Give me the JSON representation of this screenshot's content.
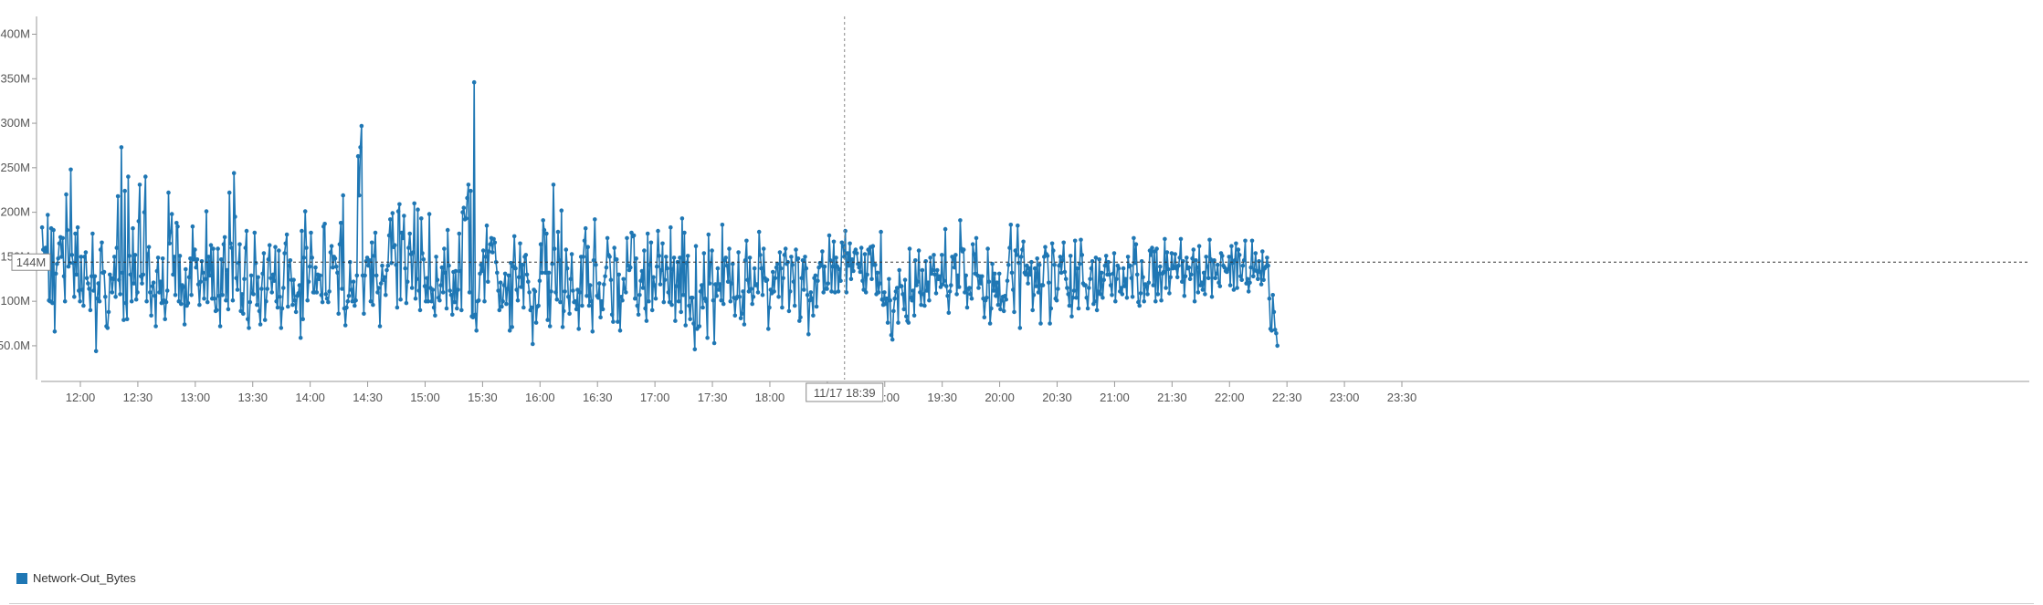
{
  "colors": {
    "series": "#1f77b4",
    "axis": "#999999",
    "crosshair": "#888888",
    "badge_border": "#888888",
    "text": "#555555"
  },
  "crosshair": {
    "x_label": "11/17 18:39",
    "x_minutes": 1119,
    "y_label": "144M",
    "y_value": 144
  },
  "chart_data": {
    "type": "line",
    "title": "",
    "xlabel": "",
    "ylabel": "",
    "xlim_minutes": [
      695,
      1405
    ],
    "ylim": [
      12,
      420
    ],
    "x_ticks": [
      {
        "label": "12:00",
        "minutes": 720
      },
      {
        "label": "12:30",
        "minutes": 750
      },
      {
        "label": "13:00",
        "minutes": 780
      },
      {
        "label": "13:30",
        "minutes": 810
      },
      {
        "label": "14:00",
        "minutes": 840
      },
      {
        "label": "14:30",
        "minutes": 870
      },
      {
        "label": "15:00",
        "minutes": 900
      },
      {
        "label": "15:30",
        "minutes": 930
      },
      {
        "label": "16:00",
        "minutes": 960
      },
      {
        "label": "16:30",
        "minutes": 990
      },
      {
        "label": "17:00",
        "minutes": 1020
      },
      {
        "label": "17:30",
        "minutes": 1050
      },
      {
        "label": "18:00",
        "minutes": 1080
      },
      {
        "label": "18:30",
        "minutes": 1110
      },
      {
        "label": "19:00",
        "minutes": 1140
      },
      {
        "label": "19:30",
        "minutes": 1170
      },
      {
        "label": "20:00",
        "minutes": 1200
      },
      {
        "label": "20:30",
        "minutes": 1230
      },
      {
        "label": "21:00",
        "minutes": 1260
      },
      {
        "label": "21:30",
        "minutes": 1290
      },
      {
        "label": "22:00",
        "minutes": 1320
      },
      {
        "label": "22:30",
        "minutes": 1350
      },
      {
        "label": "23:00",
        "minutes": 1380
      },
      {
        "label": "23:30",
        "minutes": 1410
      }
    ],
    "y_ticks": [
      {
        "label": "50.0M",
        "value": 50
      },
      {
        "label": "100M",
        "value": 100
      },
      {
        "label": "150M",
        "value": 150
      },
      {
        "label": "200M",
        "value": 200
      },
      {
        "label": "250M",
        "value": 250
      },
      {
        "label": "300M",
        "value": 300
      },
      {
        "label": "350M",
        "value": 350
      },
      {
        "label": "400M",
        "value": 400
      }
    ],
    "series": [
      {
        "name": "Network-Out_Bytes",
        "x_start_minutes": 700,
        "x_step_minutes": 0.6,
        "values": [
          183,
          158,
          152,
          160,
          145,
          197,
          101,
          100,
          182,
          98,
          180,
          66,
          131,
          142,
          148,
          165,
          172,
          150,
          171,
          128,
          100,
          220,
          180,
          139,
          143,
          248,
          152,
          143,
          105,
          176,
          130,
          183,
          112,
          100,
          150,
          113,
          95,
          150,
          155,
          126,
          120,
          114,
          90,
          128,
          176,
          112,
          128,
          44,
          103,
          120,
          100,
          158,
          166,
          132,
          133,
          105,
          72,
          70,
          88,
          130,
          126,
          110,
          125,
          150,
          105,
          160,
          218,
          124,
          108,
          273,
          132,
          79,
          224,
          98,
          80,
          240,
          151,
          130,
          100,
          182,
          120,
          152,
          102,
          110,
          190,
          231,
          128,
          120,
          130,
          200,
          240,
          100,
          153,
          161,
          110,
          84,
          117,
          121,
          106,
          72,
          134,
          149,
          110,
          122,
          98,
          148,
          101,
          80,
          99,
          112,
          222,
          165,
          178,
          198,
          130,
          150,
          107,
          188,
          184,
          100,
          151,
          97,
          118,
          116,
          74,
          136,
          95,
          98,
          127,
          148,
          107,
          184,
          147,
          158,
          138,
          147,
          119,
          96,
          122,
          145,
          132,
          103,
          125,
          201,
          99,
          150,
          129,
          163,
          103,
          159,
          103,
          89,
          90,
          159,
          106,
          72,
          147,
          107,
          164,
          172,
          101,
          135,
          91,
          222,
          165,
          160,
          101,
          244,
          195,
          126,
          113,
          143,
          164,
          89,
          108,
          86,
          125,
          160,
          179,
          80,
          70,
          99,
          129,
          109,
          108,
          177,
          143,
          96,
          127,
          89,
          74,
          114,
          131,
          154,
          79,
          100,
          114,
          147,
          163,
          126,
          110,
          130,
          123,
          161,
          100,
          93,
          157,
          105,
          70,
          92,
          115,
          154,
          165,
          175,
          94,
          140,
          146,
          124,
          96,
          124,
          101,
          88,
          106,
          109,
          118,
          59,
          179,
          80,
          149,
          201,
          160,
          101,
          122,
          139,
          177,
          149,
          110,
          110,
          138,
          110,
          130,
          125,
          129,
          107,
          99,
          184,
          187,
          108,
          103,
          99,
          111,
          155,
          162,
          138,
          150,
          148,
          139,
          132,
          86,
          164,
          188,
          114,
          219,
          92,
          73,
          93,
          100,
          106,
          144,
          113,
          100,
          122,
          95,
          101,
          129,
          263,
          219,
          273,
          297,
          129,
          86,
          129,
          145,
          149,
          140,
          146,
          100,
          166,
          96,
          151,
          177,
          129,
          110,
          115,
          72,
          120,
          140,
          124,
          127,
          107,
          135,
          140,
          174,
          192,
          143,
          199,
          161,
          163,
          141,
          93,
          201,
          209,
          102,
          177,
          171,
          196,
          137,
          98,
          122,
          160,
          176,
          153,
          115,
          155,
          210,
          103,
          125,
          203,
          112,
          90,
          193,
          154,
          147,
          117,
          100,
          126,
          100,
          198,
          115,
          100,
          113,
          93,
          84,
          150,
          124,
          104,
          101,
          118,
          138,
          110,
          159,
          132,
          92,
          180,
          140,
          112,
          107,
          85,
          133,
          99,
          134,
          92,
          113,
          176,
          134,
          90,
          200,
          205,
          192,
          193,
          216,
          231,
          110,
          224,
          83,
          82,
          346,
          85,
          67,
          100,
          101,
          131,
          141,
          134,
          157,
          100,
          150,
          185,
          122,
          156,
          164,
          171,
          155,
          170,
          166,
          144,
          132,
          112,
          90,
          121,
          94,
          100,
          118,
          131,
          97,
          114,
          129,
          67,
          143,
          71,
          139,
          173,
          137,
          113,
          101,
          127,
          165,
          116,
          141,
          93,
          150,
          152,
          130,
          122,
          110,
          90,
          93,
          52,
          113,
          111,
          76,
          94,
          95,
          123,
          164,
          132,
          191,
          180,
          132,
          176,
          79,
          132,
          72,
          111,
          142,
          231,
          159,
          110,
          102,
          178,
          146,
          99,
          202,
          71,
          89,
          111,
          158,
          137,
          105,
          86,
          125,
          153,
          112,
          99,
          100,
          91,
          113,
          69,
          110,
          150,
          95,
          150,
          168,
          182,
          106,
          161,
          95,
          118,
          100,
          66,
          146,
          192,
          141,
          106,
          104,
          120,
          82,
          100,
          91,
          119,
          128,
          138,
          171,
          152,
          150,
          124,
          85,
          77,
          160,
          147,
          147,
          77,
          130,
          67,
          105,
          101,
          125,
          114,
          110,
          171,
          140,
          135,
          138,
          177,
          173,
          174,
          103,
          148,
          95,
          85,
          107,
          123,
          134,
          115,
          157,
          92,
          78,
          176,
          100,
          141,
          166,
          90,
          127,
          118,
          103,
          139,
          179,
          151,
          119,
          135,
          165,
          99,
          124,
          150,
          137,
          110,
          99,
          183,
          96,
          136,
          149,
          78,
          117,
          144,
          100,
          149,
          88,
          193,
          107,
          177,
          73,
          143,
          151,
          95,
          80,
          104,
          104,
          75,
          46,
          162,
          69,
          71,
          72,
          111,
          118,
          93,
          154,
          103,
          100,
          59,
          175,
          120,
          143,
          157,
          101,
          53,
          119,
          106,
          137,
          113,
          119,
          101,
          186,
          97,
          146,
          149,
          140,
          122,
          159,
          100,
          120,
          142,
          104,
          84,
          103,
          105,
          155,
          105,
          81,
          86,
          111,
          74,
          146,
          168,
          124,
          111,
          149,
          114,
          97,
          105,
          137,
          118,
          119,
          110,
          178,
          152,
          137,
          107,
          159,
          126,
          123,
          124,
          69,
          93,
          113,
          109,
          133,
          111,
          126,
          138,
          142,
          105,
          155,
          137,
          93,
          126,
          152,
          159,
          142,
          144,
          89,
          111,
          150,
          141,
          122,
          95,
          158,
          147,
          148,
          78,
          82,
          126,
          146,
          113,
          150,
          137,
          107,
          63,
          101,
          110,
          103,
          84,
          126,
          129,
          94,
          123,
          138,
          143,
          140,
          156,
          110,
          139,
          114,
          114,
          120,
          174,
          146,
          111,
          139,
          167,
          110,
          149,
          139,
          111,
          136,
          123,
          166,
          162,
          150,
          179,
          110,
          154,
          140,
          165,
          125,
          147,
          134,
          155,
          158,
          154,
          142,
          138,
          133,
          160,
          123,
          113,
          153,
          110,
          130,
          158,
          154,
          161,
          125,
          162,
          141,
          141,
          108,
          132,
          110,
          120,
          178,
          102,
          96,
          110,
          97,
          103,
          76,
          125,
          101,
          62,
          57,
          89,
          103,
          111,
          115,
          76,
          135,
          117,
          117,
          108,
          91,
          124,
          83,
          78,
          76,
          159,
          104,
          101,
          112,
          84,
          146,
          118,
          122,
          157,
          110,
          96,
          135,
          108,
          95,
          145,
          112,
          121,
          101,
          149,
          131,
          135,
          152,
          130,
          109,
          135,
          125,
          128,
          116,
          152,
          119,
          123,
          181,
          117,
          106,
          87,
          111,
          118,
          150,
          148,
          138,
          152,
          108,
          129,
          116,
          191,
          159,
          156,
          158,
          110,
          129,
          93,
          114,
          115,
          108,
          103,
          164,
          153,
          131,
          171,
          129,
          115,
          128,
          120,
          128,
          103,
          82,
          101,
          104,
          159,
          122,
          75,
          92,
          142,
          112,
          131,
          106,
          121,
          96,
          131,
          91,
          101,
          105,
          89,
          106,
          102,
          123,
          141,
          160,
          186,
          132,
          113,
          88,
          157,
          152,
          185,
          143,
          70,
          150,
          158,
          167,
          132,
          130,
          140,
          120,
          137,
          130,
          144,
          90,
          107,
          137,
          117,
          148,
          110,
          141,
          75,
          118,
          118,
          150,
          161,
          153,
          151,
          121,
          75,
          92,
          165,
          157,
          141,
          103,
          101,
          114,
          140,
          150,
          132,
          146,
          166,
          133,
          125,
          115,
          108,
          95,
          151,
          83,
          104,
          112,
          168,
          104,
          137,
          92,
          142,
          169,
          152,
          120,
          118,
          118,
          104,
          92,
          115,
          125,
          137,
          145,
          97,
          100,
          149,
          90,
          111,
          147,
          108,
          132,
          104,
          124,
          140,
          151,
          130,
          144,
          130,
          118,
          107,
          131,
          154,
          100,
          125,
          140,
          137,
          111,
          115,
          108,
          137,
          117,
          125,
          104,
          150,
          139,
          140,
          126,
          105,
          171,
          143,
          164,
          130,
          99,
          95,
          109,
          145,
          127,
          100,
          119,
          117,
          108,
          121,
          157,
          152,
          160,
          118,
          156,
          100,
          159,
          108,
          131,
          139,
          101,
          131,
          133,
          170,
          115,
          155,
          136,
          109,
          127,
          154,
          137,
          139,
          153,
          137,
          127,
          140,
          149,
          170,
          122,
          145,
          106,
          128,
          149,
          137,
          138,
          125,
          130,
          148,
          158,
          100,
          146,
          138,
          110,
          162,
          118,
          121,
          113,
          132,
          108,
          150,
          139,
          126,
          169,
          147,
          105,
          145,
          146,
          126,
          131,
          141,
          121,
          117,
          154,
          151,
          140,
          138,
          134,
          133,
          136,
          150,
          118,
          162,
          143,
          113,
          146,
          165,
          115,
          158,
          152,
          128,
          124,
          140,
          146,
          168,
          120,
          125,
          111,
          121,
          138,
          168,
          128,
          135,
          154,
          134,
          125,
          145,
          133,
          119,
          156,
          124,
          137,
          139,
          149,
          140,
          103,
          69,
          67,
          107,
          88,
          68,
          64,
          50
        ]
      }
    ]
  },
  "legend": {
    "label": "Network-Out_Bytes"
  }
}
